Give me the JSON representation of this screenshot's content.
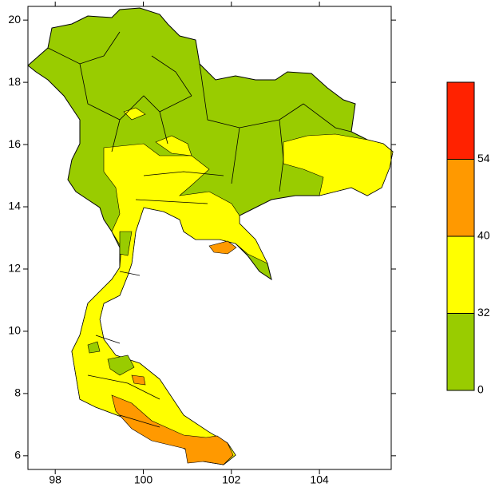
{
  "map": {
    "xlim": [
      97.38,
      105.63
    ],
    "ylim": [
      5.56,
      20.44
    ],
    "xticks": [
      98,
      100,
      102,
      104
    ],
    "yticks": [
      6,
      8,
      10,
      12,
      14,
      16,
      18,
      20
    ],
    "colorbar": {
      "levels": [
        0,
        32,
        40,
        54
      ],
      "colors": [
        "#99cc00",
        "#ffff00",
        "#ff9900",
        "#ff2200"
      ]
    }
  }
}
